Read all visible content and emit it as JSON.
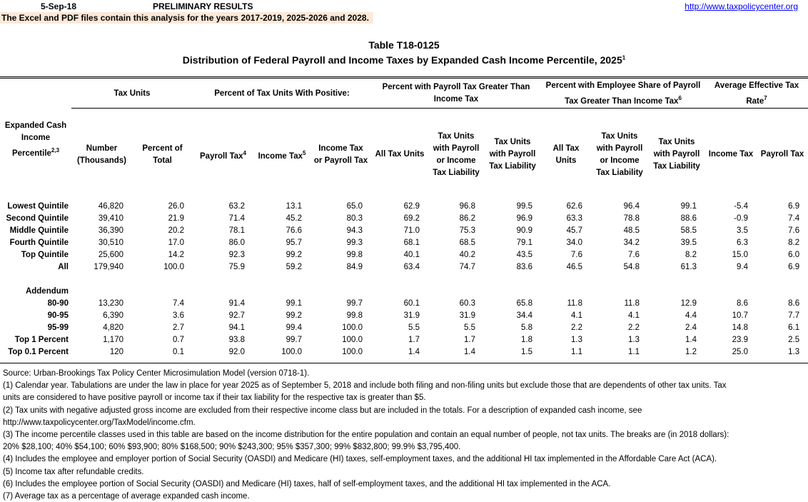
{
  "header": {
    "date": "5-Sep-18",
    "status": "PRELIMINARY RESULTS",
    "banner": "The Excel and PDF files contain this analysis for the years 2017-2019, 2025-2026 and 2028.",
    "url": "http://www.taxpolicycenter.org"
  },
  "title": {
    "table_id": "Table T18-0125",
    "main": "Distribution of Federal Payroll and Income Taxes by Expanded Cash Income Percentile, 2025",
    "main_sup": "1"
  },
  "groups": {
    "tax_units": "Tax Units",
    "positive": "Percent of Tax Units With Positive:",
    "payroll_gt": "Percent with Payroll Tax Greater Than Income Tax",
    "employee_share": "Percent with Employee Share of Payroll Tax Greater Than Income Tax",
    "employee_share_sup": "6",
    "avg_rate": "Average Effective Tax Rate",
    "avg_rate_sup": "7"
  },
  "columns": {
    "percentile": "Expanded Cash Income Percentile",
    "percentile_sup": "2,3",
    "number": "Number (Thousands)",
    "pct_total": "Percent of Total",
    "payroll": "Payroll Tax",
    "payroll_sup": "4",
    "income": "Income Tax",
    "income_sup": "5",
    "inc_or_pay": "Income Tax or Payroll Tax",
    "all1": "All Tax Units",
    "with_liab1": "Tax Units with Payroll or Income Tax Liability",
    "with_pay1": "Tax Units with Payroll Tax Liability",
    "all2": "All Tax Units",
    "with_liab2": "Tax Units with Payroll or Income Tax Liability",
    "with_pay2": "Tax Units with Payroll Tax Liability",
    "eff_income": "Income Tax",
    "eff_payroll": "Payroll Tax"
  },
  "rows": [
    {
      "label": "Lowest Quintile",
      "v": [
        "46,820",
        "26.0",
        "63.2",
        "13.1",
        "65.0",
        "62.9",
        "96.8",
        "99.5",
        "62.6",
        "96.4",
        "99.1",
        "-5.4",
        "6.9"
      ]
    },
    {
      "label": "Second Quintile",
      "v": [
        "39,410",
        "21.9",
        "71.4",
        "45.2",
        "80.3",
        "69.2",
        "86.2",
        "96.9",
        "63.3",
        "78.8",
        "88.6",
        "-0.9",
        "7.4"
      ]
    },
    {
      "label": "Middle Quintile",
      "v": [
        "36,390",
        "20.2",
        "78.1",
        "76.6",
        "94.3",
        "71.0",
        "75.3",
        "90.9",
        "45.7",
        "48.5",
        "58.5",
        "3.5",
        "7.6"
      ]
    },
    {
      "label": "Fourth Quintile",
      "v": [
        "30,510",
        "17.0",
        "86.0",
        "95.7",
        "99.3",
        "68.1",
        "68.5",
        "79.1",
        "34.0",
        "34.2",
        "39.5",
        "6.3",
        "8.2"
      ]
    },
    {
      "label": "Top Quintile",
      "v": [
        "25,600",
        "14.2",
        "92.3",
        "99.2",
        "99.8",
        "40.1",
        "40.2",
        "43.5",
        "7.6",
        "7.6",
        "8.2",
        "15.0",
        "6.0"
      ]
    },
    {
      "label": "All",
      "v": [
        "179,940",
        "100.0",
        "75.9",
        "59.2",
        "84.9",
        "63.4",
        "74.7",
        "83.6",
        "46.5",
        "54.8",
        "61.3",
        "9.4",
        "6.9"
      ]
    }
  ],
  "addendum_label": "Addendum",
  "addendum": [
    {
      "label": "80-90",
      "v": [
        "13,230",
        "7.4",
        "91.4",
        "99.1",
        "99.7",
        "60.1",
        "60.3",
        "65.8",
        "11.8",
        "11.8",
        "12.9",
        "8.6",
        "8.6"
      ]
    },
    {
      "label": "90-95",
      "v": [
        "6,390",
        "3.6",
        "92.7",
        "99.2",
        "99.8",
        "31.9",
        "31.9",
        "34.4",
        "4.1",
        "4.1",
        "4.4",
        "10.7",
        "7.7"
      ]
    },
    {
      "label": "95-99",
      "v": [
        "4,820",
        "2.7",
        "94.1",
        "99.4",
        "100.0",
        "5.5",
        "5.5",
        "5.8",
        "2.2",
        "2.2",
        "2.4",
        "14.8",
        "6.1"
      ]
    },
    {
      "label": "Top 1 Percent",
      "v": [
        "1,170",
        "0.7",
        "93.8",
        "99.7",
        "100.0",
        "1.7",
        "1.7",
        "1.8",
        "1.3",
        "1.3",
        "1.4",
        "23.9",
        "2.5"
      ]
    },
    {
      "label": "Top 0.1 Percent",
      "v": [
        "120",
        "0.1",
        "92.0",
        "100.0",
        "100.0",
        "1.4",
        "1.4",
        "1.5",
        "1.1",
        "1.1",
        "1.2",
        "25.0",
        "1.3"
      ]
    }
  ],
  "footnotes": [
    "Source: Urban-Brookings Tax Policy Center Microsimulation Model (version 0718-1).",
    "(1) Calendar year. Tabulations are under the law in place for year 2025 as of September 5, 2018 and include both filing and non-filing units but exclude those that are dependents of other tax units.  Tax",
    "units are considered to have positive payroll or income tax if their tax liability for the respective tax is greater than $5.",
    "(2) Tax units with negative adjusted gross income are excluded from their respective income class but are included in the totals. For a description of expanded cash income, see",
    "http://www.taxpolicycenter.org/TaxModel/income.cfm.",
    "(3) The income percentile classes used in this table are based on the income distribution for the entire population and contain an equal number of people, not tax units. The breaks are (in 2018 dollars):",
    "20% $28,100; 40% $54,100; 60% $93,900; 80% $168,500; 90% $243,300; 95% $357,300; 99% $832,800; 99.9% $3,795,400.",
    "(4) Includes the employee and employer portion of Social Security (OASDI) and Medicare (HI) taxes, self-employment taxes, and the additional HI tax implemented in the Affordable Care Act (ACA).",
    "(5) Income tax after refundable credits.",
    "(6) Includes the employee portion of Social Security (OASDI) and Medicare (HI) taxes, half of self-employment taxes, and the additional HI tax implemented in the ACA.",
    "(7) Average tax as a percentage of average expanded cash income."
  ]
}
